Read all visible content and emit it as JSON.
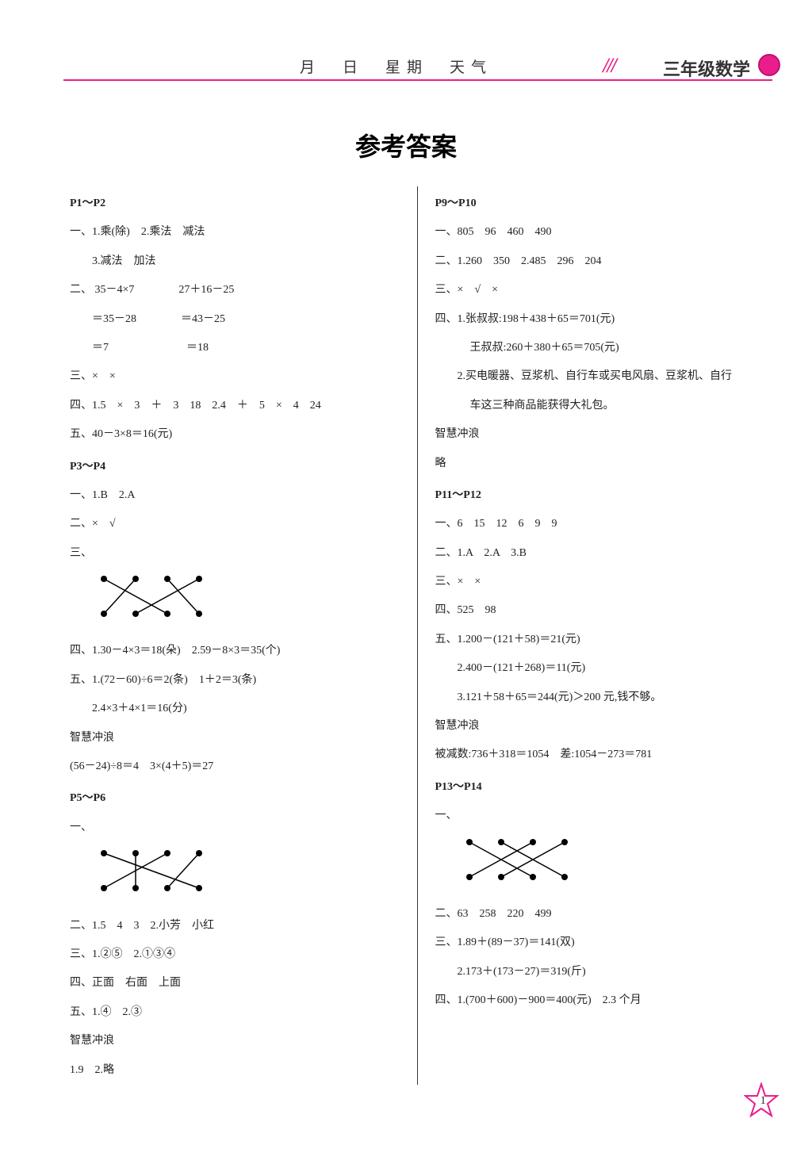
{
  "header": {
    "date_fields": "月　日　星期　天气",
    "grade": "三年级数学"
  },
  "title": "参考答案",
  "page_number": "1",
  "colors": {
    "pink": "#e91e8c",
    "text": "#222222",
    "bg": "#ffffff"
  },
  "left": {
    "s1_head": "P1～P2",
    "s1_l1": "一、1.乘(除)　2.乘法　减法",
    "s1_l2": "3.减法　加法",
    "s1_l3": "二、 35－4×7　　　　27＋16－25",
    "s1_l4": "＝35－28　　　　＝43－25",
    "s1_l5": "＝7　　　　　　　＝18",
    "s1_l6": "三、×　×",
    "s1_l7": "四、1.5　×　3　＋　3　18　2.4　＋　5　×　4　24",
    "s1_l8": "五、40－3×8＝16(元)",
    "s2_head": "P3～P4",
    "s2_l1": "一、1.B　2.A",
    "s2_l2": "二、×　√",
    "s2_l3": "三、",
    "s2_l4": "四、1.30－4×3＝18(朵)　2.59－8×3＝35(个)",
    "s2_l5": "五、1.(72－60)÷6＝2(条)　1＋2＝3(条)",
    "s2_l6": "2.4×3＋4×1＝16(分)",
    "s2_l7": "智慧冲浪",
    "s2_l8": "(56－24)÷8＝4　3×(4＋5)＝27",
    "s3_head": "P5～P6",
    "s3_l1": "一、",
    "s3_l2": "二、1.5　4　3　2.小芳　小红",
    "s3_l3": "三、1.②⑤　2.①③④",
    "s3_l4": "四、正面　右面　上面",
    "s3_l5": "五、1.④　2.③",
    "s3_l6": "智慧冲浪",
    "s3_l7": "1.9　2.略"
  },
  "right": {
    "s1_head": "P9～P10",
    "s1_l1": "一、805　96　460　490",
    "s1_l2": "二、1.260　350　2.485　296　204",
    "s1_l3": "三、×　√　×",
    "s1_l4": "四、1.张叔叔:198＋438＋65＝701(元)",
    "s1_l5": "王叔叔:260＋380＋65＝705(元)",
    "s1_l6": "2.买电暖器、豆浆机、自行车或买电风扇、豆浆机、自行",
    "s1_l7": "车这三种商品能获得大礼包。",
    "s1_l8": "智慧冲浪",
    "s1_l9": "略",
    "s2_head": "P11～P12",
    "s2_l1": "一、6　15　12　6　9　9",
    "s2_l2": "二、1.A　2.A　3.B",
    "s2_l3": "三、×　×",
    "s2_l4": "四、525　98",
    "s2_l5": "五、1.200－(121＋58)＝21(元)",
    "s2_l6": "2.400－(121＋268)＝11(元)",
    "s2_l7": "3.121＋58＋65＝244(元)＞200 元,钱不够。",
    "s2_l8": "智慧冲浪",
    "s2_l9": "被减数:736＋318＝1054　差:1054－273＝781",
    "s3_head": "P13～P14",
    "s3_l1": "一、",
    "s3_l2": "二、63　258　220　499",
    "s3_l3": "三、1.89＋(89－37)＝141(双)",
    "s3_l4": "2.173＋(173－27)＝319(斤)",
    "s3_l5": "四、1.(700＋600)－900＝400(元)　2.3 个月"
  },
  "matching_diagram": {
    "type": "network",
    "top_nodes": [
      0,
      1,
      2,
      3
    ],
    "bottom_nodes": [
      0,
      1,
      2,
      3
    ],
    "edges_a": [
      [
        0,
        2
      ],
      [
        1,
        0
      ],
      [
        2,
        3
      ],
      [
        3,
        1
      ]
    ],
    "edges_b": [
      [
        0,
        3
      ],
      [
        1,
        1
      ],
      [
        2,
        0
      ],
      [
        3,
        2
      ]
    ],
    "edges_c": [
      [
        0,
        2
      ],
      [
        1,
        3
      ],
      [
        2,
        0
      ],
      [
        3,
        1
      ]
    ],
    "node_color": "#000000",
    "line_color": "#000000",
    "node_radius": 4,
    "line_width": 1.5
  }
}
